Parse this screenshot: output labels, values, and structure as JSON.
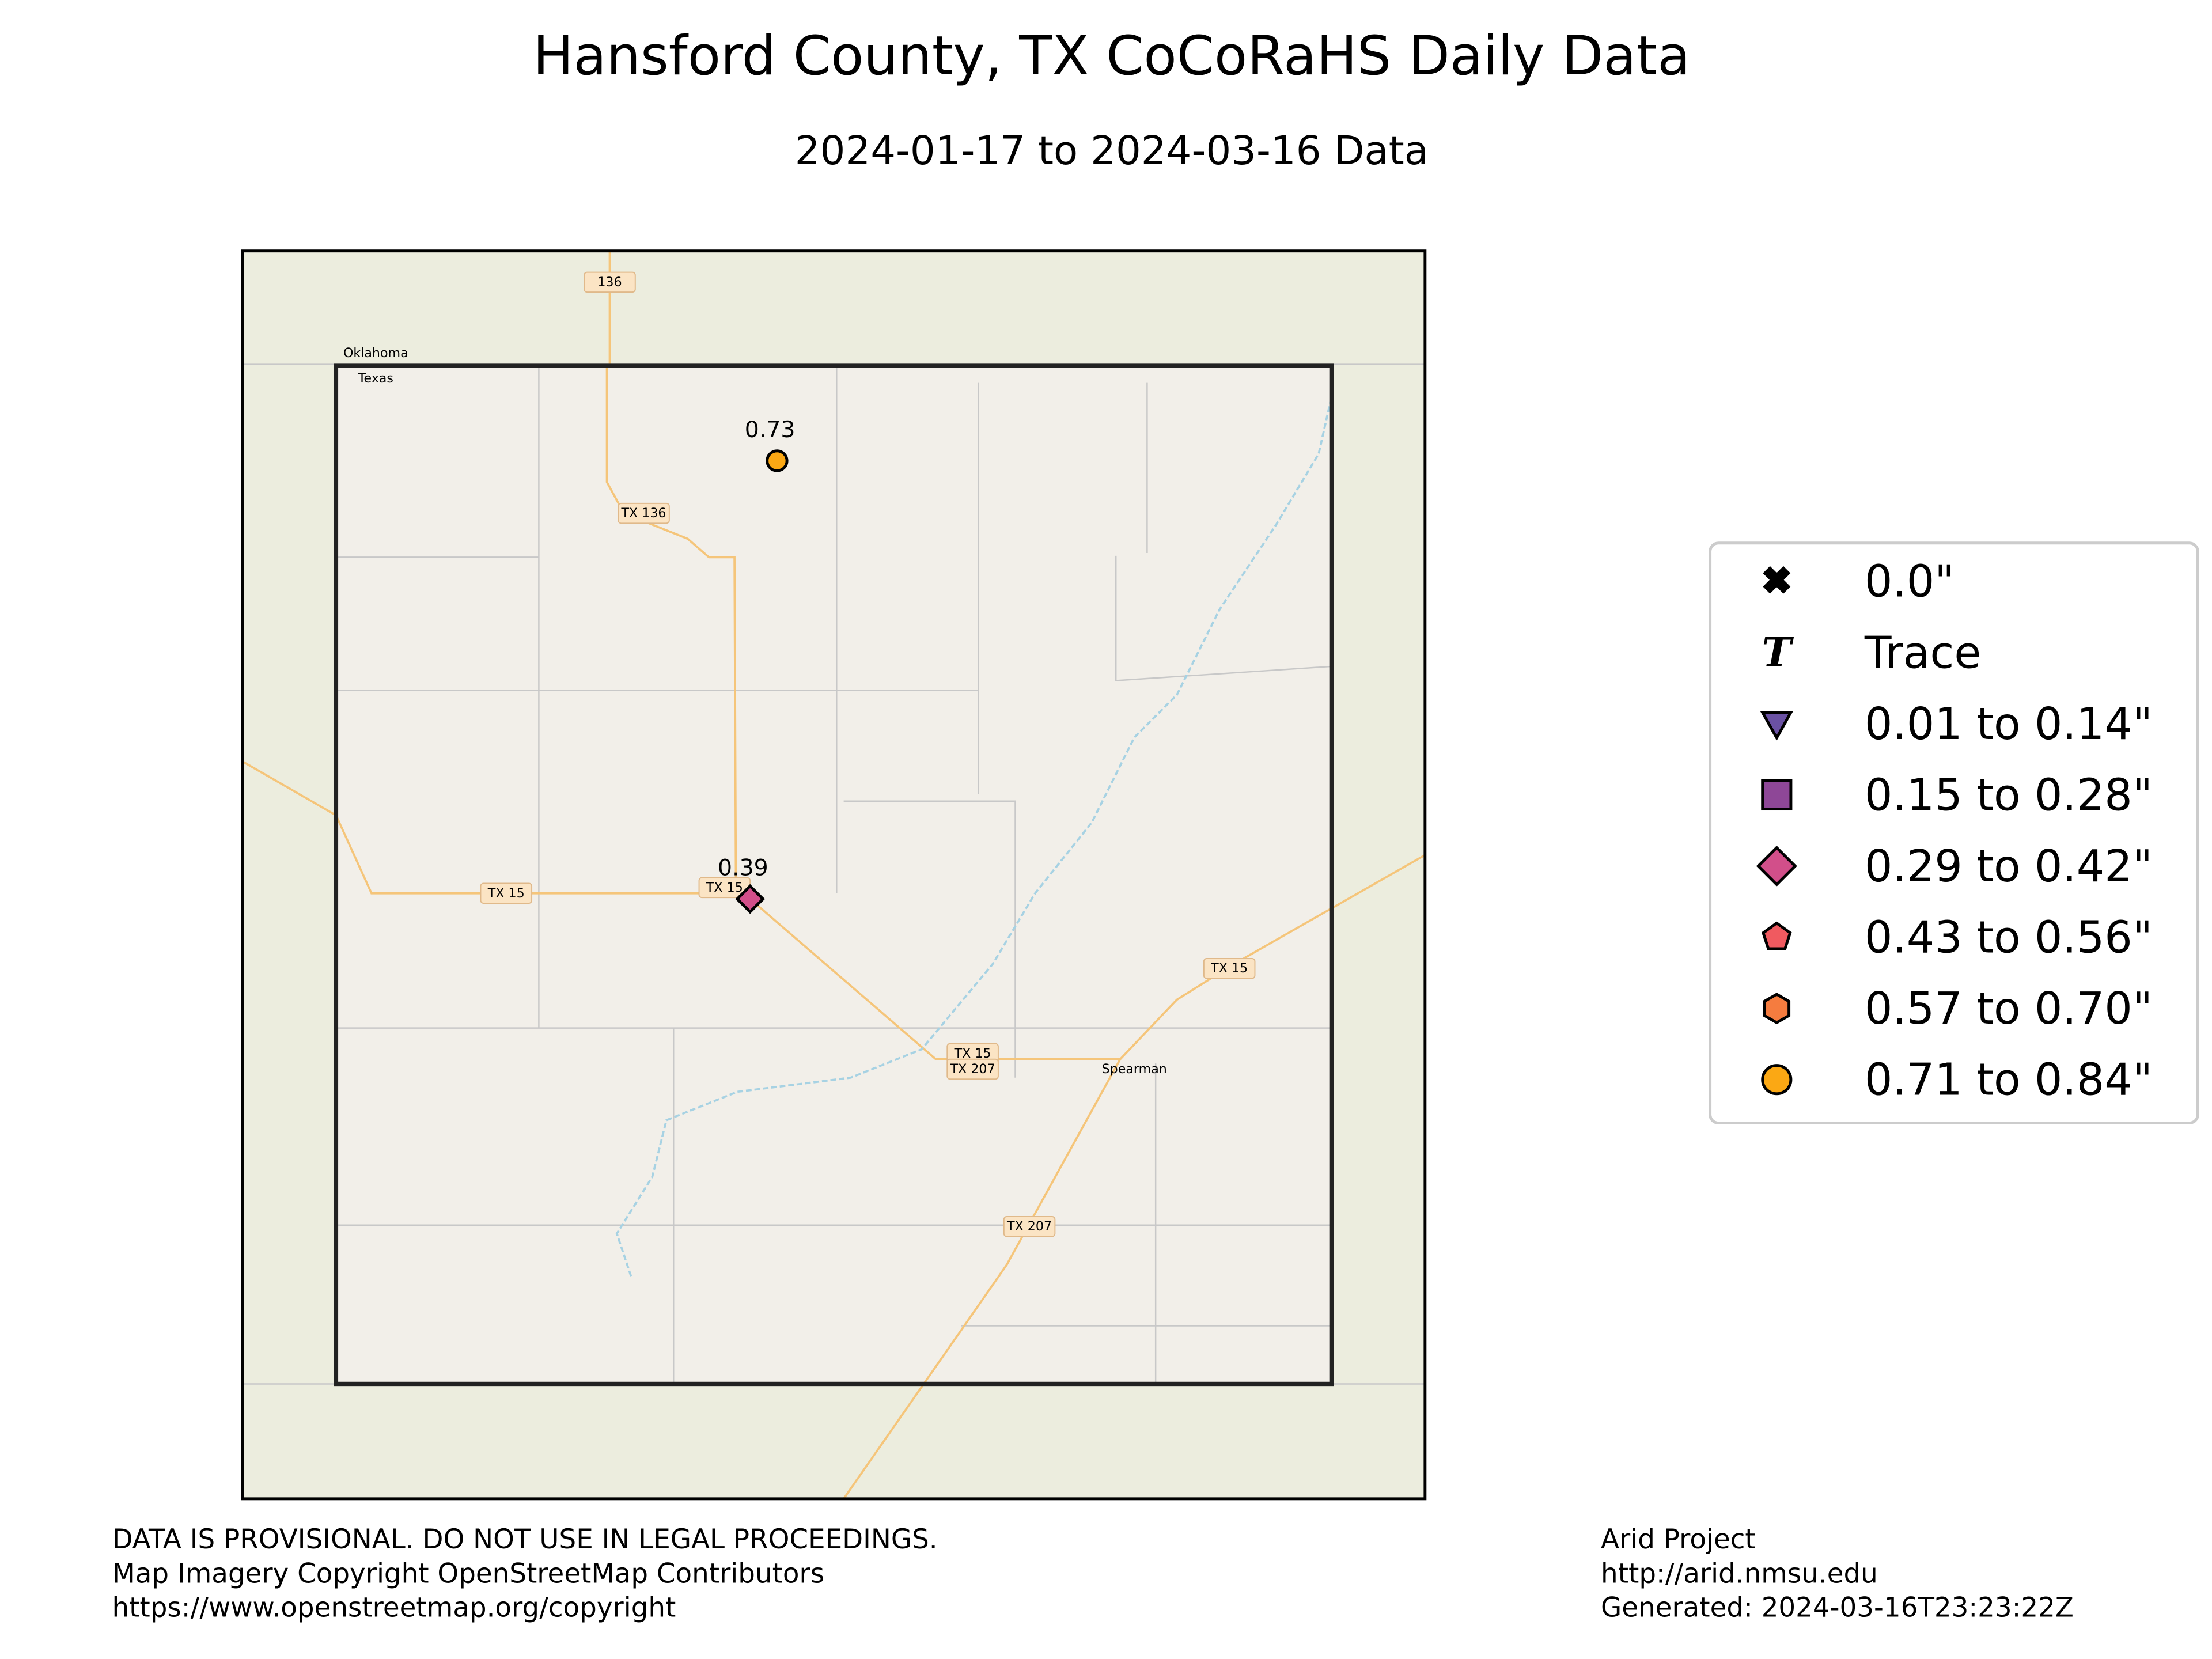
{
  "header": {
    "title": "Hansford County, TX CoCoRaHS Daily Data",
    "subtitle": "2024-01-17 to 2024-03-16 Data"
  },
  "stations": [
    {
      "value": 0.73
    },
    {
      "value": 0.39
    }
  ],
  "map_labels": [
    "Oklahoma",
    "Texas",
    "136",
    "TX 136",
    "TX 15",
    "TX 15",
    "TX 15",
    "TX 15",
    "TX 207",
    "TX 207",
    "Spearman"
  ],
  "legend": [
    "0.0\"",
    "Trace",
    "0.01 to 0.14\"",
    "0.15 to 0.28\"",
    "0.29 to 0.42\"",
    "0.43 to 0.56\"",
    "0.57 to 0.70\"",
    "0.71 to 0.84\""
  ],
  "footer": {
    "left": [
      "DATA IS PROVISIONAL. DO NOT USE IN LEGAL PROCEEDINGS.",
      "Map Imagery Copyright OpenStreetMap Contributors",
      "https://www.openstreetmap.org/copyright"
    ],
    "right": [
      "Arid Project",
      "http://arid.nmsu.edu",
      "Generated: 2024-03-16T23:23:22Z"
    ]
  }
}
